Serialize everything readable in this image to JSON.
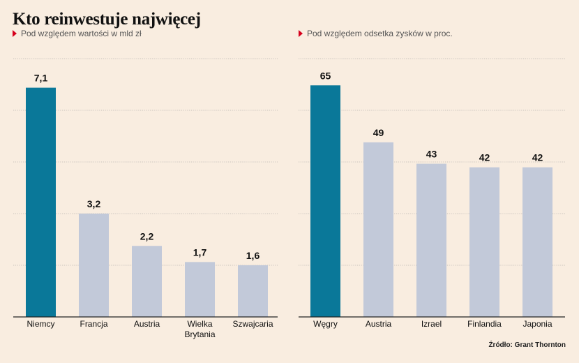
{
  "title": "Kto reinwestuje najwięcej",
  "source": "Źródło: Grant Thornton",
  "colors": {
    "highlight": "#0a7899",
    "normal": "#c2c9d9",
    "grid": "#9a9a9a",
    "axis": "#222222"
  },
  "chart_data": [
    {
      "type": "bar",
      "subtitle": "Pod względem wartości w mld zł",
      "categories": [
        "Niemcy",
        "Francja",
        "Austria",
        "Wielka Brytania",
        "Szwajcaria"
      ],
      "category_lines": [
        [
          "Niemcy"
        ],
        [
          "Francja"
        ],
        [
          "Austria"
        ],
        [
          "Wielka",
          "Brytania"
        ],
        [
          "Szwajcaria"
        ]
      ],
      "values": [
        7.1,
        3.2,
        2.2,
        1.7,
        1.6
      ],
      "value_labels": [
        "7,1",
        "3,2",
        "2,2",
        "1,7",
        "1,6"
      ],
      "highlight_index": 0,
      "ylim": [
        0,
        8
      ],
      "grid": true
    },
    {
      "type": "bar",
      "subtitle": "Pod względem odsetka zysków w proc.",
      "categories": [
        "Węgry",
        "Austria",
        "Izrael",
        "Finlandia",
        "Japonia"
      ],
      "category_lines": [
        [
          "Węgry"
        ],
        [
          "Austria"
        ],
        [
          "Izrael"
        ],
        [
          "Finlandia"
        ],
        [
          "Japonia"
        ]
      ],
      "values": [
        65,
        49,
        43,
        42,
        42
      ],
      "value_labels": [
        "65",
        "49",
        "43",
        "42",
        "42"
      ],
      "highlight_index": 0,
      "ylim": [
        0,
        72.5
      ],
      "grid": true
    }
  ]
}
